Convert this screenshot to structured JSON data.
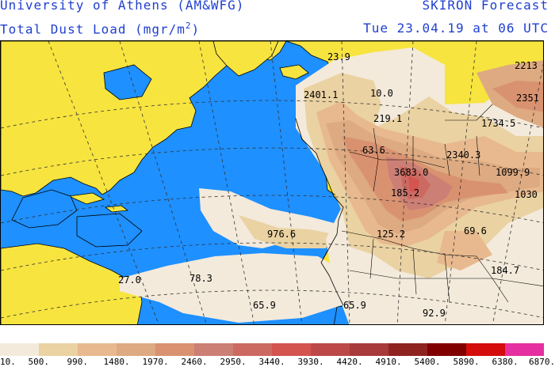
{
  "header": {
    "institution": "University of Athens (AM&WFG)",
    "product": "SKIRON Forecast",
    "field_label": "Total Dust Load (mgr/m",
    "field_unit_sup": "2",
    "field_close": ")",
    "valid_time": "Tue 23.04.19 at 06 UTC"
  },
  "colors": {
    "ocean": "#1e90ff",
    "land": "#f7e43f",
    "coast": "#000000",
    "grid": "#333333",
    "header_text": "#1f3fd0"
  },
  "map_values": [
    {
      "text": "23.9"
    },
    {
      "text": "2213"
    },
    {
      "text": "2401.1"
    },
    {
      "text": "10.0"
    },
    {
      "text": "2351"
    },
    {
      "text": "219.1"
    },
    {
      "text": "1734.5"
    },
    {
      "text": "63.6"
    },
    {
      "text": "2340.3"
    },
    {
      "text": "3683.0"
    },
    {
      "text": "1099.9"
    },
    {
      "text": "185.2"
    },
    {
      "text": "1030"
    },
    {
      "text": "976.6"
    },
    {
      "text": "125.2"
    },
    {
      "text": "69.6"
    },
    {
      "text": "184.7"
    },
    {
      "text": "27.0"
    },
    {
      "text": "78.3"
    },
    {
      "text": "65.9"
    },
    {
      "text": "65.9"
    },
    {
      "text": "92.9"
    }
  ],
  "legend": {
    "colors": [
      "#f3eadb",
      "#ead2a2",
      "#e8b98e",
      "#ddaa81",
      "#d99270",
      "#cc7f75",
      "#cc6a62",
      "#d4544f",
      "#bd4848",
      "#a83a3b",
      "#8f2320",
      "#800000",
      "#d40c0c",
      "#e62fa0"
    ],
    "labels": [
      "10.",
      "500.",
      "990.",
      "1480.",
      "1970.",
      "2460.",
      "2950.",
      "3440.",
      "3930.",
      "4420.",
      "4910.",
      "5400.",
      "5890.",
      "6380.",
      "6870."
    ]
  }
}
